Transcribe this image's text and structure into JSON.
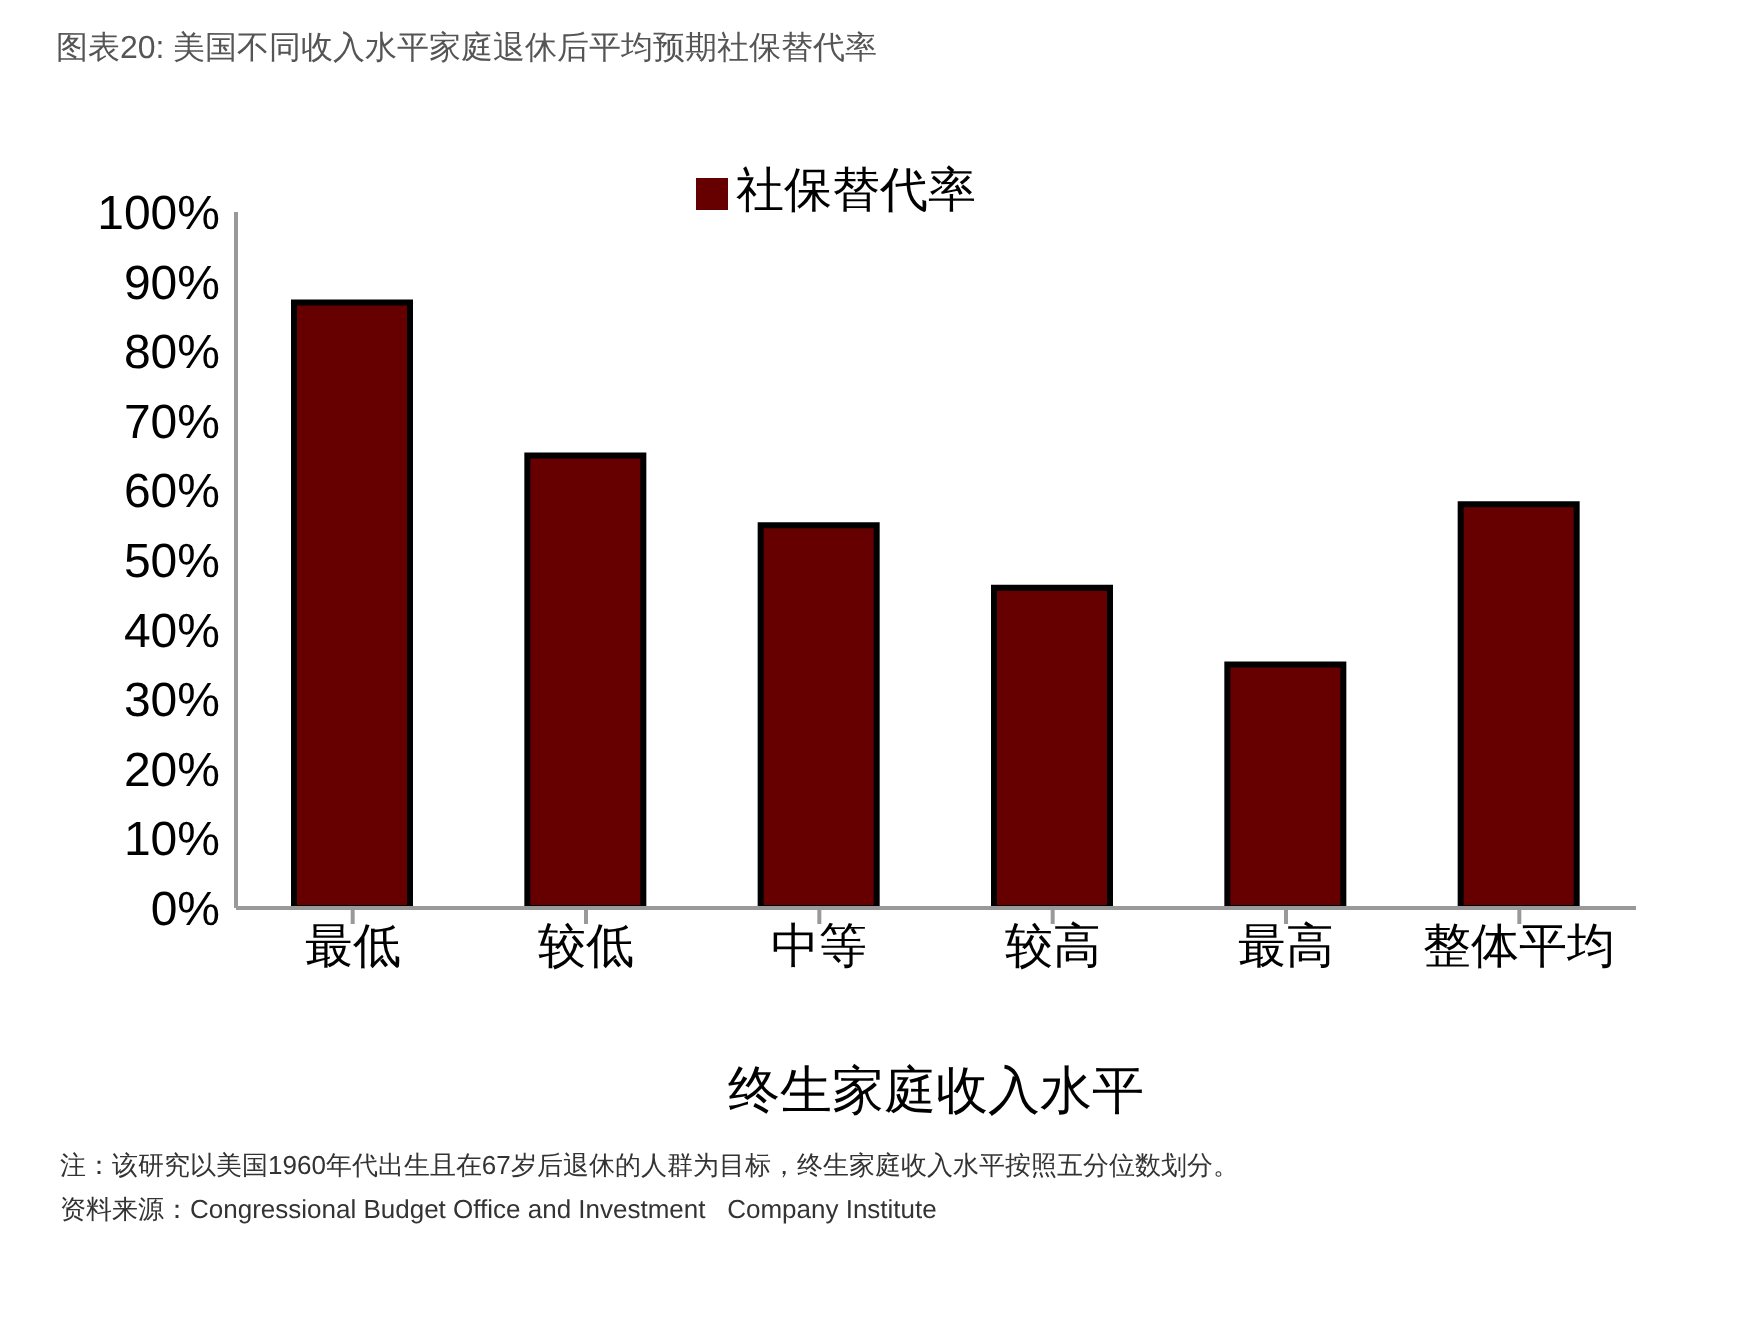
{
  "chart_data": {
    "type": "bar",
    "title": "图表20: 美国不同收入水平家庭退休后平均预期社保替代率",
    "xlabel": "终生家庭收入水平",
    "categories": [
      "最低",
      "较低",
      "中等",
      "较高",
      "最高",
      "整体平均"
    ],
    "series": [
      {
        "name": "社保替代率",
        "color": "#660000",
        "values": [
          87,
          65,
          55,
          46,
          35,
          58
        ]
      }
    ],
    "ylim": [
      0,
      100
    ],
    "yticks": [
      {
        "value": 0,
        "label": "0%"
      },
      {
        "value": 10,
        "label": "10%"
      },
      {
        "value": 20,
        "label": "20%"
      },
      {
        "value": 30,
        "label": "30%"
      },
      {
        "value": 40,
        "label": "40%"
      },
      {
        "value": 50,
        "label": "50%"
      },
      {
        "value": 60,
        "label": "60%"
      },
      {
        "value": 70,
        "label": "70%"
      },
      {
        "value": 80,
        "label": "80%"
      },
      {
        "value": 90,
        "label": "90%"
      },
      {
        "value": 100,
        "label": "100%"
      }
    ],
    "grid": false,
    "legend": "top",
    "annotations": [
      "注：该研究以美国1960年代出生且在67岁后退休的人群为目标，终生家庭收入水平按照五分位数划分。",
      "资料来源：Congressional Budget Office and Investment   Company Institute"
    ]
  }
}
